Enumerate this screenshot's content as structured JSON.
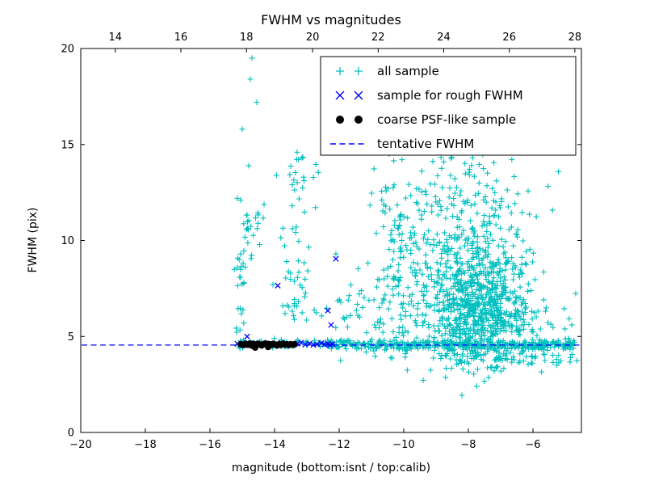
{
  "figure": {
    "title": "FWHM vs magnitudes",
    "xlabel": "magnitude (bottom:isnt / top:calib)",
    "ylabel": "FWHM (pix)"
  },
  "chart_data": {
    "type": "scatter",
    "title": "FWHM vs magnitudes",
    "xlabel": "magnitude (bottom:isnt / top:calib)",
    "ylabel": "FWHM (pix)",
    "xlim": [
      -20,
      -4.5
    ],
    "ylim": [
      0,
      20
    ],
    "grid": false,
    "legend_position": "upper right",
    "background": "#ffffff",
    "seed": 42,
    "tentative_fwhm_value": 4.55,
    "x_ticks": {
      "values": [
        -20,
        -18,
        -16,
        -14,
        -12,
        -10,
        -8,
        -6
      ],
      "labels": [
        "−20",
        "−18",
        "−16",
        "−14",
        "−12",
        "−10",
        "−8",
        "−6"
      ]
    },
    "y_ticks": {
      "values": [
        0,
        5,
        10,
        15,
        20
      ],
      "labels": [
        "0",
        "5",
        "10",
        "15",
        "20"
      ]
    },
    "top_ticks": {
      "fracs": [
        0.069,
        0.2,
        0.331,
        0.463,
        0.594,
        0.725,
        0.856,
        0.987
      ],
      "labels": [
        "14",
        "16",
        "18",
        "20",
        "22",
        "24",
        "26",
        "28"
      ]
    },
    "series": [
      {
        "name": "all sample",
        "marker": "plus",
        "color": "#00bfbf",
        "z": 1,
        "points": [
          [
            -14.7,
            19.5
          ],
          [
            -14.75,
            18.4
          ],
          [
            -14.55,
            17.2
          ],
          [
            -15.0,
            15.8
          ],
          [
            -14.8,
            13.9
          ],
          [
            -15.15,
            12.2
          ],
          [
            -15.05,
            12.1
          ],
          [
            -13.3,
            14.6
          ],
          [
            -13.15,
            14.3
          ],
          [
            -13.45,
            12.9
          ],
          [
            -14.05,
            7.7
          ],
          [
            -10.45,
            14.5
          ],
          [
            -9.6,
            15.2
          ],
          [
            -7.4,
            15.5
          ],
          [
            -12.1,
            9.3
          ]
        ],
        "clusters": [
          {
            "n": 600,
            "cx": -7.7,
            "sx": 0.75,
            "cy": 6.2,
            "sy": 1.3
          },
          {
            "n": 300,
            "cx": -7.9,
            "sx": 0.95,
            "cy": 8.8,
            "sy": 1.8
          },
          {
            "n": 90,
            "cx": -8.1,
            "sx": 1.1,
            "cy": 12.6,
            "sy": 1.3
          },
          {
            "n": 25,
            "cx": -8.3,
            "sx": 1.2,
            "cy": 14.9,
            "sy": 0.7
          },
          {
            "n": 380,
            "dist": "uniform",
            "cx": -8.55,
            "hx": 3.85,
            "cy": 4.55,
            "sy": 0.13
          },
          {
            "n": 70,
            "cx": -7.2,
            "sx": 1.0,
            "cy": 3.9,
            "sy": 0.3
          },
          {
            "n": 130,
            "cx": -9.9,
            "sx": 0.55,
            "cy": 7.0,
            "sy": 1.8
          },
          {
            "n": 45,
            "cx": -10.3,
            "sx": 0.4,
            "cy": 11.0,
            "sy": 1.3
          },
          {
            "n": 26,
            "cx": -15.05,
            "sx": 0.1,
            "cy": 7.5,
            "sy": 1.5
          },
          {
            "n": 22,
            "cx": -14.75,
            "sx": 0.18,
            "cy": 10.8,
            "sy": 0.9
          },
          {
            "n": 40,
            "cx": -13.35,
            "sx": 0.3,
            "cy": 8.3,
            "sy": 1.6
          },
          {
            "n": 18,
            "cx": -13.3,
            "sx": 0.25,
            "cy": 13.2,
            "sy": 0.8
          },
          {
            "n": 70,
            "dist": "uniform",
            "cx": -13.75,
            "hx": 1.45,
            "cy": 4.6,
            "sy": 0.1
          },
          {
            "n": 35,
            "cx": -11.6,
            "sx": 0.5,
            "cy": 6.3,
            "sy": 1.2
          },
          {
            "n": 30,
            "cx": -5.6,
            "sx": 0.5,
            "cy": 5.2,
            "sy": 0.6
          },
          {
            "n": 12,
            "cx": -5.0,
            "sx": 0.3,
            "cy": 3.9,
            "sy": 0.25
          }
        ]
      },
      {
        "name": "sample for rough FWHM",
        "marker": "x",
        "color": "#0000ff",
        "z": 3,
        "points": [
          [
            -15.15,
            4.62
          ],
          [
            -14.92,
            4.58
          ],
          [
            -14.72,
            4.66
          ],
          [
            -14.5,
            4.6
          ],
          [
            -14.3,
            4.55
          ],
          [
            -14.12,
            4.63
          ],
          [
            -13.95,
            4.58
          ],
          [
            -13.78,
            4.66
          ],
          [
            -13.6,
            4.6
          ],
          [
            -13.45,
            4.55
          ],
          [
            -13.3,
            4.62
          ],
          [
            -13.18,
            4.68
          ],
          [
            -13.05,
            4.58
          ],
          [
            -12.92,
            4.63
          ],
          [
            -12.8,
            4.55
          ],
          [
            -12.68,
            4.6
          ],
          [
            -12.55,
            4.66
          ],
          [
            -12.45,
            4.58
          ],
          [
            -12.35,
            4.62
          ],
          [
            -12.28,
            4.55
          ],
          [
            -12.2,
            4.6
          ],
          [
            -12.1,
            9.05
          ],
          [
            -13.9,
            7.65
          ],
          [
            -12.35,
            6.35
          ],
          [
            -12.25,
            5.6
          ],
          [
            -14.85,
            5.0
          ]
        ]
      },
      {
        "name": "coarse PSF-like sample",
        "marker": "dot",
        "color": "#000000",
        "z": 4,
        "points": [
          [
            -15.05,
            4.6
          ],
          [
            -14.97,
            4.55
          ],
          [
            -14.9,
            4.62
          ],
          [
            -14.83,
            4.57
          ],
          [
            -14.76,
            4.63
          ],
          [
            -14.7,
            4.52
          ],
          [
            -14.64,
            4.6
          ],
          [
            -14.58,
            4.56
          ],
          [
            -14.52,
            4.62
          ],
          [
            -14.46,
            4.58
          ],
          [
            -14.4,
            4.53
          ],
          [
            -14.34,
            4.6
          ],
          [
            -14.28,
            4.64
          ],
          [
            -14.22,
            4.56
          ],
          [
            -14.16,
            4.6
          ],
          [
            -14.1,
            4.55
          ],
          [
            -14.04,
            4.62
          ],
          [
            -13.98,
            4.58
          ],
          [
            -13.92,
            4.53
          ],
          [
            -13.86,
            4.6
          ],
          [
            -13.8,
            4.56
          ],
          [
            -13.74,
            4.62
          ],
          [
            -13.68,
            4.57
          ],
          [
            -13.62,
            4.6
          ],
          [
            -13.56,
            4.55
          ],
          [
            -13.5,
            4.6
          ],
          [
            -13.44,
            4.57
          ],
          [
            -13.38,
            4.6
          ],
          [
            -14.6,
            4.42
          ],
          [
            -14.2,
            4.45
          ]
        ]
      },
      {
        "name": "tentative FWHM",
        "type": "hline",
        "y": 4.55,
        "color": "#0000ff",
        "style": "dashed",
        "z": 2
      }
    ]
  }
}
